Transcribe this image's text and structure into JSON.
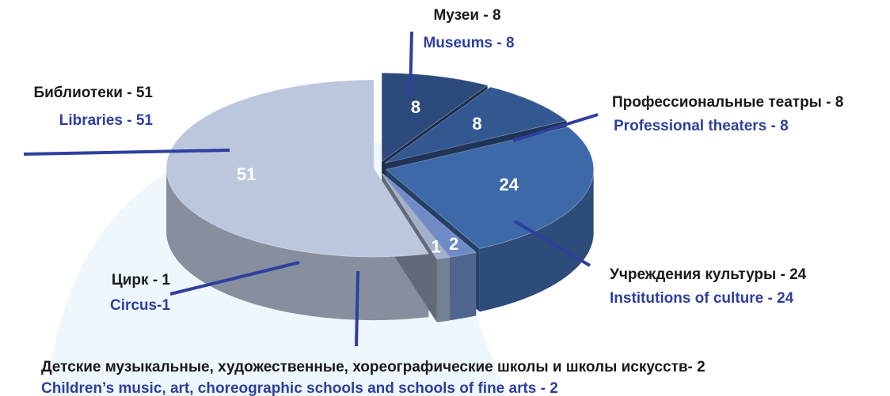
{
  "chart_data": {
    "type": "pie3d",
    "categories": [
      "Музеи - 8",
      "Профессиональные театры - 8",
      "Учреждения культуры - 24",
      "Детские музыкальные, художественные, хореографические школы и школы искусств- 2",
      "Цирк - 1",
      "Библиотеки - 51"
    ],
    "categories_en": [
      "Museums - 8",
      "Professional theaters - 8",
      "Institutions of culture - 24",
      "Children’s music, art, choreographic schools and schools of fine arts - 2",
      "Circus-1",
      "Libraries - 51"
    ],
    "values": [
      8,
      8,
      24,
      2,
      1,
      51
    ],
    "colors": [
      "#2c4a7c",
      "#335791",
      "#3e69a9",
      "#6e8bc7",
      "#a3b0cb",
      "#bcc6dd"
    ]
  }
}
